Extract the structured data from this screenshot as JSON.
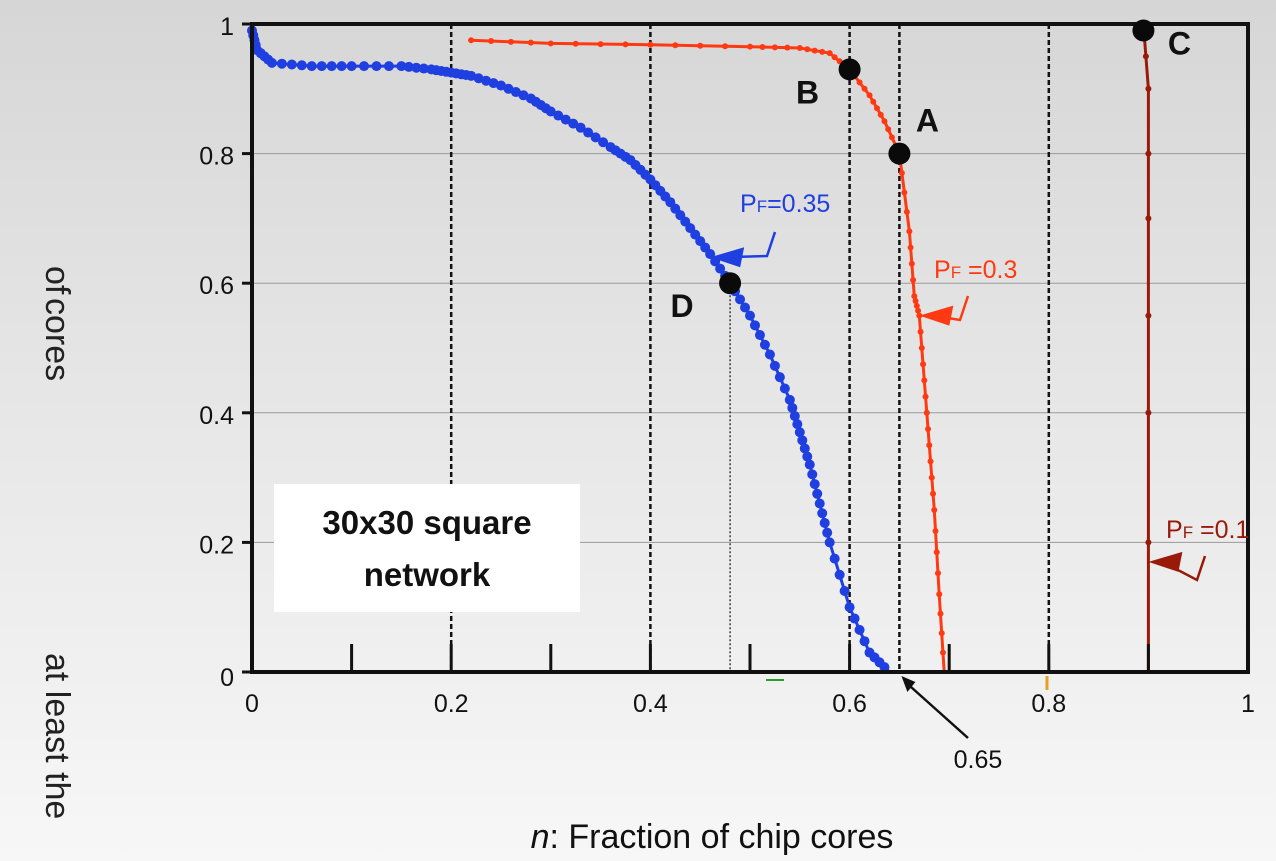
{
  "chart_data": {
    "type": "line",
    "xlabel_italic": "n",
    "xlabel_rest": ": Fraction of chip cores",
    "ylabel_fragments": [
      "of",
      "at least the",
      "cores"
    ],
    "xlim": [
      0,
      1
    ],
    "ylim": [
      0,
      1
    ],
    "x_ticks": [
      "0",
      "0.2",
      "0.4",
      "0.6",
      "0.8",
      "1"
    ],
    "y_ticks": [
      "0",
      "0.2",
      "0.4",
      "0.6",
      "0.8",
      "1"
    ],
    "grid": "horizontal lines at y ticks; dashed vertical lines at x = 0.2, 0.4, 0.6, 0.65, 0.8",
    "series": [
      {
        "name": "PF=0.35",
        "label_main": "P",
        "label_sub": "F",
        "label_rest": "=0.35",
        "color": "#1f3fe0",
        "points": [
          [
            0.0,
            0.99
          ],
          [
            0.005,
            0.96
          ],
          [
            0.02,
            0.94
          ],
          [
            0.06,
            0.935
          ],
          [
            0.1,
            0.935
          ],
          [
            0.15,
            0.935
          ],
          [
            0.18,
            0.93
          ],
          [
            0.2,
            0.925
          ],
          [
            0.22,
            0.92
          ],
          [
            0.25,
            0.905
          ],
          [
            0.28,
            0.885
          ],
          [
            0.3,
            0.865
          ],
          [
            0.33,
            0.84
          ],
          [
            0.36,
            0.81
          ],
          [
            0.38,
            0.79
          ],
          [
            0.4,
            0.76
          ],
          [
            0.42,
            0.725
          ],
          [
            0.44,
            0.685
          ],
          [
            0.46,
            0.645
          ],
          [
            0.48,
            0.6
          ],
          [
            0.5,
            0.55
          ],
          [
            0.52,
            0.49
          ],
          [
            0.54,
            0.42
          ],
          [
            0.55,
            0.37
          ],
          [
            0.56,
            0.32
          ],
          [
            0.57,
            0.26
          ],
          [
            0.58,
            0.2
          ],
          [
            0.6,
            0.1
          ],
          [
            0.62,
            0.03
          ],
          [
            0.64,
            0.0
          ]
        ]
      },
      {
        "name": "PF =0.3",
        "label_main": "P",
        "label_sub": "F",
        "label_rest": " =0.3",
        "color": "#ff3a12",
        "points": [
          [
            0.22,
            0.975
          ],
          [
            0.3,
            0.97
          ],
          [
            0.4,
            0.968
          ],
          [
            0.5,
            0.965
          ],
          [
            0.55,
            0.963
          ],
          [
            0.58,
            0.955
          ],
          [
            0.6,
            0.93
          ],
          [
            0.62,
            0.89
          ],
          [
            0.635,
            0.85
          ],
          [
            0.65,
            0.8
          ],
          [
            0.66,
            0.68
          ],
          [
            0.665,
            0.58
          ],
          [
            0.67,
            0.55
          ],
          [
            0.675,
            0.45
          ],
          [
            0.68,
            0.35
          ],
          [
            0.685,
            0.25
          ],
          [
            0.69,
            0.12
          ],
          [
            0.695,
            0.0
          ]
        ]
      },
      {
        "name": "PF =0.1",
        "label_main": "P",
        "label_sub": "F",
        "label_rest": " =0.1",
        "color": "#9a1a0a",
        "points": [
          [
            0.895,
            1.0
          ],
          [
            0.9,
            0.9
          ],
          [
            0.9,
            0.7
          ],
          [
            0.9,
            0.4
          ],
          [
            0.9,
            0.0
          ]
        ]
      }
    ],
    "marked_points": [
      {
        "label": "A",
        "x": 0.65,
        "y": 0.8
      },
      {
        "label": "B",
        "x": 0.6,
        "y": 0.93
      },
      {
        "label": "C",
        "x": 0.895,
        "y": 0.99
      },
      {
        "label": "D",
        "x": 0.48,
        "y": 0.6
      }
    ],
    "annotations": [
      {
        "text": "0.65",
        "points_to_x": 0.65,
        "points_to_y": 0.0
      },
      {
        "text": "30x30 square\nnetwork"
      }
    ]
  }
}
